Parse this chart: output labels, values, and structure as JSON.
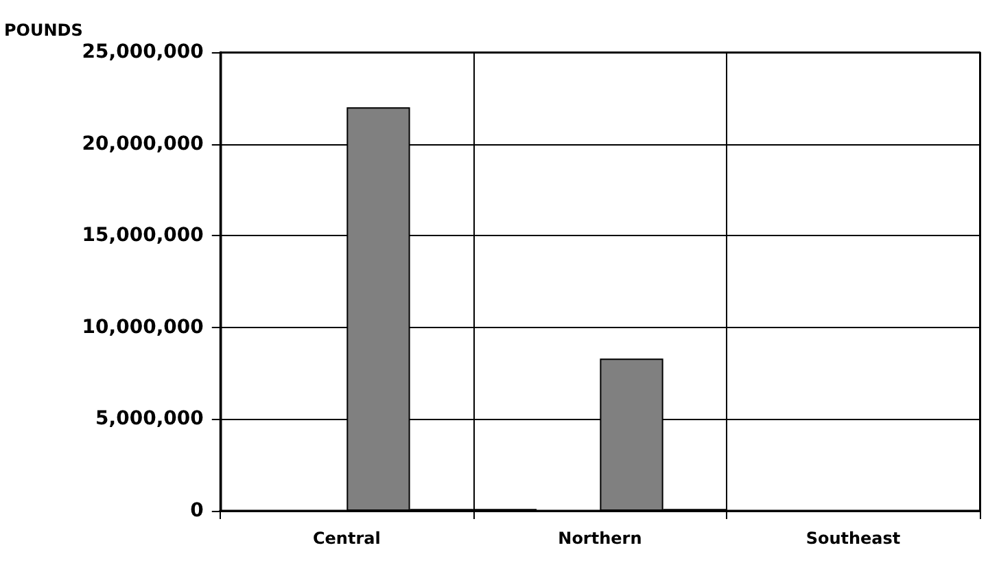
{
  "chart_data": {
    "type": "bar",
    "ylabel": "POUNDS",
    "categories": [
      "Central",
      "Northern",
      "Southeast"
    ],
    "series": [
      {
        "color": "#808080",
        "values": [
          null,
          100000,
          null
        ]
      },
      {
        "color": "#808080",
        "values": [
          null,
          null,
          null
        ]
      },
      {
        "color": "#808080",
        "values": [
          22000000,
          8300000,
          null
        ]
      },
      {
        "color": "#808080",
        "values": [
          100000,
          100000,
          null
        ]
      }
    ],
    "ylim": [
      0,
      25000000
    ],
    "yticks": [
      0,
      {
        "value": 5000000,
        "label": "5,000,000"
      },
      {
        "value": 10000000,
        "label": "10,000,000"
      },
      {
        "value": 15000000,
        "label": "15,000,000"
      },
      {
        "value": 20000000,
        "label": "20,000,000"
      },
      {
        "value": 25000000,
        "label": "25,000,000"
      }
    ],
    "grid": true
  }
}
